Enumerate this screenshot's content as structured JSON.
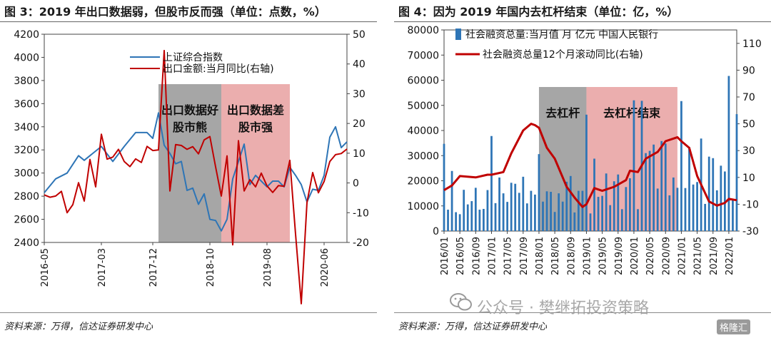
{
  "left_panel": {
    "figure_title": "图 3：2019 年出口数据弱，但股市反而强（单位：点数，%）",
    "source": "资料来源：万得，信达证券研发中心"
  },
  "right_panel": {
    "figure_title": "图 4：因为 2019 年国内去杠杆结束（单位：亿，%）",
    "source": "资料来源：万得，信达证券研发中心"
  },
  "watermark": {
    "text": "公众号 · 樊继拓投资策略",
    "badge": "格隆汇"
  },
  "colors": {
    "blue": "#2E75B6",
    "red": "#C00000",
    "grey_shade": "#A6A6A6",
    "pink_shade": "#E8A0A0"
  },
  "chart_data": [
    {
      "type": "line",
      "title": "图 3：2019 年出口数据弱，但股市反而强（单位：点数，%）",
      "x_ticks": [
        "2016-05",
        "2017-03",
        "2017-12",
        "2018-10",
        "2019-08",
        "2020-06"
      ],
      "x_range": [
        "2016-05",
        "2020-10"
      ],
      "y_left": {
        "min": 2400,
        "max": 4200,
        "ticks": [
          2400,
          2600,
          2800,
          3000,
          3200,
          3400,
          3600,
          3800,
          4000,
          4200
        ]
      },
      "y_right": {
        "min": -20,
        "max": 50,
        "ticks": [
          -20,
          -10,
          0,
          10,
          20,
          30,
          40,
          50
        ]
      },
      "legend_position": "top-left",
      "shaded_regions": [
        {
          "label_lines": [
            "出口数据好",
            "股市熊"
          ],
          "start": "2018-01",
          "end": "2018-12",
          "color": "grey"
        },
        {
          "label_lines": [
            "出口数据差",
            "股市强"
          ],
          "start": "2018-12",
          "end": "2019-12",
          "color": "pink"
        }
      ],
      "series": [
        {
          "name": "上证综合指数",
          "axis": "left",
          "color": "blue",
          "points": [
            [
              "2016-05",
              2830
            ],
            [
              "2016-07",
              2950
            ],
            [
              "2016-09",
              3000
            ],
            [
              "2016-11",
              3150
            ],
            [
              "2016-12",
              3110
            ],
            [
              "2017-01",
              3150
            ],
            [
              "2017-03",
              3230
            ],
            [
              "2017-05",
              3100
            ],
            [
              "2017-07",
              3230
            ],
            [
              "2017-09",
              3350
            ],
            [
              "2017-11",
              3350
            ],
            [
              "2017-12",
              3300
            ],
            [
              "2018-01",
              3520
            ],
            [
              "2018-02",
              3240
            ],
            [
              "2018-03",
              3170
            ],
            [
              "2018-04",
              3080
            ],
            [
              "2018-05",
              3100
            ],
            [
              "2018-06",
              2850
            ],
            [
              "2018-07",
              2870
            ],
            [
              "2018-08",
              2730
            ],
            [
              "2018-09",
              2820
            ],
            [
              "2018-10",
              2600
            ],
            [
              "2018-11",
              2590
            ],
            [
              "2018-12",
              2500
            ],
            [
              "2019-01",
              2600
            ],
            [
              "2019-02",
              2950
            ],
            [
              "2019-03",
              3100
            ],
            [
              "2019-04",
              3250
            ],
            [
              "2019-05",
              2900
            ],
            [
              "2019-06",
              2980
            ],
            [
              "2019-07",
              2930
            ],
            [
              "2019-08",
              2880
            ],
            [
              "2019-09",
              2930
            ],
            [
              "2019-10",
              2930
            ],
            [
              "2019-11",
              2880
            ],
            [
              "2019-12",
              3050
            ],
            [
              "2020-01",
              2980
            ],
            [
              "2020-02",
              2900
            ],
            [
              "2020-03",
              2750
            ],
            [
              "2020-04",
              2860
            ],
            [
              "2020-05",
              2850
            ],
            [
              "2020-06",
              2980
            ],
            [
              "2020-07",
              3310
            ],
            [
              "2020-08",
              3400
            ],
            [
              "2020-09",
              3220
            ],
            [
              "2020-10",
              3270
            ]
          ]
        },
        {
          "name": "出口金额:当月同比(右轴)",
          "axis": "right",
          "color": "red",
          "points": [
            [
              "2016-05",
              -4
            ],
            [
              "2016-06",
              -4.8
            ],
            [
              "2016-07",
              -4.4
            ],
            [
              "2016-08",
              -2.8
            ],
            [
              "2016-09",
              -10
            ],
            [
              "2016-10",
              -7.3
            ],
            [
              "2016-11",
              0.1
            ],
            [
              "2016-12",
              -6.1
            ],
            [
              "2017-01",
              7.9
            ],
            [
              "2017-02",
              -1.3
            ],
            [
              "2017-03",
              16.4
            ],
            [
              "2017-04",
              8
            ],
            [
              "2017-05",
              8.7
            ],
            [
              "2017-06",
              11.3
            ],
            [
              "2017-07",
              7.2
            ],
            [
              "2017-08",
              5.5
            ],
            [
              "2017-09",
              8.1
            ],
            [
              "2017-10",
              6.9
            ],
            [
              "2017-11",
              12.3
            ],
            [
              "2017-12",
              10.9
            ],
            [
              "2018-01",
              11.1
            ],
            [
              "2018-02",
              44.5
            ],
            [
              "2018-03",
              -2.7
            ],
            [
              "2018-04",
              12.9
            ],
            [
              "2018-05",
              12.6
            ],
            [
              "2018-06",
              11.3
            ],
            [
              "2018-07",
              12.2
            ],
            [
              "2018-08",
              9.8
            ],
            [
              "2018-09",
              14.5
            ],
            [
              "2018-10",
              15.6
            ],
            [
              "2018-11",
              5.4
            ],
            [
              "2018-12",
              -4.4
            ],
            [
              "2019-01",
              9.1
            ],
            [
              "2019-02",
              -20.8
            ],
            [
              "2019-03",
              14.2
            ],
            [
              "2019-04",
              -2.7
            ],
            [
              "2019-05",
              1.1
            ],
            [
              "2019-06",
              -1.3
            ],
            [
              "2019-07",
              3.3
            ],
            [
              "2019-08",
              -1
            ],
            [
              "2019-09",
              -3.2
            ],
            [
              "2019-10",
              -0.9
            ],
            [
              "2019-11",
              -1.1
            ],
            [
              "2019-12",
              7.6
            ],
            [
              "2020-01",
              -17.2
            ],
            [
              "2020-02",
              -40.6
            ],
            [
              "2020-03",
              -6.6
            ],
            [
              "2020-04",
              3.5
            ],
            [
              "2020-05",
              -3.3
            ],
            [
              "2020-06",
              0.5
            ],
            [
              "2020-07",
              7.2
            ],
            [
              "2020-08",
              9.5
            ],
            [
              "2020-09",
              9.9
            ],
            [
              "2020-10",
              11.4
            ]
          ]
        }
      ]
    },
    {
      "type": "bar",
      "title": "图 4：因为 2019 年国内去杠杆结束（单位：亿，%）",
      "x_ticks": [
        "2016/01",
        "2016/05",
        "2016/09",
        "2017/01",
        "2017/05",
        "2017/09",
        "2018/01",
        "2018/05",
        "2018/09",
        "2019/01",
        "2019/05",
        "2019/09",
        "2020/01",
        "2020/05",
        "2020/09",
        "2021/01",
        "2021/05",
        "2021/09",
        "2022/01"
      ],
      "x_range": [
        "2016/01",
        "2022/03"
      ],
      "y_left": {
        "min": 0,
        "max": 80000,
        "ticks": [
          0,
          10000,
          20000,
          30000,
          40000,
          50000,
          60000,
          70000,
          80000
        ]
      },
      "y_right": {
        "min": -30,
        "max": 120,
        "ticks": [
          -30,
          -10,
          10,
          30,
          50,
          70,
          90,
          110
        ]
      },
      "legend_position": "top-left",
      "shaded_regions": [
        {
          "label_lines": [
            "去杠杆"
          ],
          "start": "2018/01",
          "end": "2019/01",
          "color": "grey"
        },
        {
          "label_lines": [
            "去杠杆结束"
          ],
          "start": "2019/01",
          "end": "2020/12",
          "color": "pink"
        }
      ],
      "series": [
        {
          "name": "社会融资总量:当月值 月 亿元 中国人民银行",
          "axis": "left",
          "kind": "bar",
          "color": "blue",
          "values": [
            34700,
            8500,
            23900,
            7500,
            6700,
            16400,
            10600,
            11900,
            17200,
            8500,
            8800,
            16300,
            37800,
            11100,
            21300,
            15000,
            11600,
            19200,
            18800,
            15200,
            21600,
            11000,
            16000,
            14500,
            30600,
            11700,
            15800,
            15600,
            7600,
            15000,
            11700,
            19600,
            21900,
            7400,
            16000,
            16000,
            46300,
            7000,
            28800,
            13600,
            14000,
            22900,
            10300,
            19800,
            22500,
            8700,
            17500,
            21000,
            52000,
            8700,
            51800,
            31000,
            31900,
            34400,
            16900,
            35800,
            34800,
            14200,
            21300,
            17200,
            51700,
            17100,
            33400,
            18500,
            19500,
            36800,
            10800,
            29600,
            29000,
            16200,
            26000,
            23700,
            61700,
            12200,
            46500
          ],
          "start": "2016/01"
        },
        {
          "name": "社会融资总量12个月滚动同比(右轴)",
          "axis": "right",
          "kind": "line",
          "color": "red",
          "points": [
            [
              "2016/01",
              0.5
            ],
            [
              "2016/03",
              4
            ],
            [
              "2016/05",
              11
            ],
            [
              "2016/09",
              10
            ],
            [
              "2016/12",
              12
            ],
            [
              "2017/01",
              12
            ],
            [
              "2017/04",
              14
            ],
            [
              "2017/06",
              28
            ],
            [
              "2017/09",
              45
            ],
            [
              "2017/11",
              50
            ],
            [
              "2017/12",
              49
            ],
            [
              "2018/01",
              47
            ],
            [
              "2018/03",
              32
            ],
            [
              "2018/05",
              24
            ],
            [
              "2018/08",
              3
            ],
            [
              "2018/10",
              -5
            ],
            [
              "2018/12",
              -12
            ],
            [
              "2019/01",
              -10
            ],
            [
              "2019/03",
              2
            ],
            [
              "2019/05",
              0
            ],
            [
              "2019/08",
              3
            ],
            [
              "2019/11",
              8
            ],
            [
              "2019/12",
              15
            ],
            [
              "2020/02",
              14
            ],
            [
              "2020/04",
              24
            ],
            [
              "2020/07",
              29
            ],
            [
              "2020/09",
              37
            ],
            [
              "2020/11",
              39
            ],
            [
              "2020/12",
              40
            ],
            [
              "2021/01",
              37
            ],
            [
              "2021/03",
              32
            ],
            [
              "2021/05",
              11
            ],
            [
              "2021/08",
              -8
            ],
            [
              "2021/10",
              -11
            ],
            [
              "2021/12",
              -9
            ],
            [
              "2022/01",
              -6
            ],
            [
              "2022/03",
              -7
            ]
          ]
        }
      ]
    }
  ]
}
